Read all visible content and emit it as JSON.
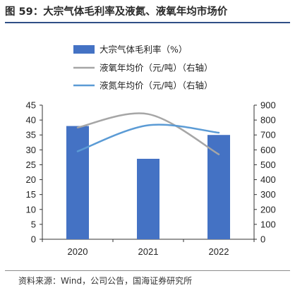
{
  "figure": {
    "title": "图 59：大宗气体毛利率及液氮、液氧年均市场价",
    "source": "资料来源：Wind，公司公告，国海证券研究所"
  },
  "chart_data": {
    "type": "bar",
    "categories": [
      "2020",
      "2021",
      "2022"
    ],
    "series": [
      {
        "name": "大宗气体毛利率（%）",
        "type": "bar",
        "axis": "left",
        "color": "#4472C4",
        "values": [
          38,
          27,
          35
        ]
      },
      {
        "name": "液氧年均价（元/吨）（右轴）",
        "type": "line",
        "axis": "right",
        "color": "#A6A6A6",
        "smooth": true,
        "values": [
          750,
          840,
          570
        ]
      },
      {
        "name": "液氮年均价（元/吨）（右轴）",
        "type": "line",
        "axis": "right",
        "color": "#5B9BD5",
        "smooth": true,
        "values": [
          590,
          765,
          715
        ]
      }
    ],
    "ylim": [
      0,
      45
    ],
    "yticks": [
      0,
      5,
      10,
      15,
      20,
      25,
      30,
      35,
      40,
      45
    ],
    "y2lim": [
      0,
      900
    ],
    "y2ticks": [
      0,
      100,
      200,
      300,
      400,
      500,
      600,
      700,
      800,
      900
    ],
    "legend_position": "top",
    "grid": false
  }
}
